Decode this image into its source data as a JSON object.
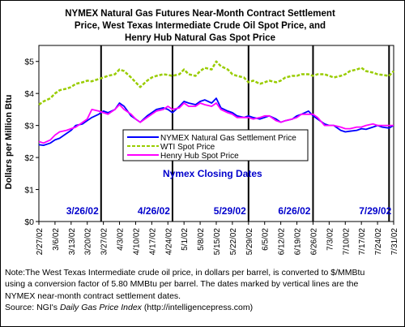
{
  "chart_data": {
    "type": "line",
    "title": "NYMEX Natural Gas Futures Near-Month Contract Settlement Price, West Texas Intermediate Crude Oil Spot Price, and Henry Hub Natural Gas Spot Price",
    "title_lines": [
      "NYMEX Natural Gas Futures Near-Month Contract Settlement",
      "Price, West Texas Intermediate Crude Oil Spot Price, and",
      "Henry Hub Natural Gas Spot Price"
    ],
    "ylabel": "Dollars per Million Btu",
    "xlabel": "",
    "ylim": [
      0,
      5.5
    ],
    "yticks": [
      "$0",
      "$1",
      "$2",
      "$3",
      "$4",
      "$5"
    ],
    "xlim": [
      "2002-02-27",
      "2002-07-31"
    ],
    "xticks": [
      "2/27/02",
      "3/6/02",
      "3/13/02",
      "3/20/02",
      "3/27/02",
      "4/3/02",
      "4/10/02",
      "4/17/02",
      "4/24/02",
      "5/1/02",
      "5/8/02",
      "5/15/02",
      "5/22/02",
      "5/29/02",
      "6/5/02",
      "6/12/02",
      "6/19/02",
      "6/26/02",
      "7/3/02",
      "7/10/02",
      "7/17/02",
      "7/24/02",
      "7/31/02"
    ],
    "grid": false,
    "legend": "center",
    "closing_dates_label": "Nymex Closing Dates",
    "closing_dates": [
      "3/26/02",
      "4/26/02",
      "5/29/02",
      "6/26/02",
      "7/29/02"
    ],
    "series": [
      {
        "name": "NYMEX Natural Gas Settlement Price",
        "color": "#0000ff",
        "style": "solid",
        "x": [
          "2002-02-27",
          "2002-03-01",
          "2002-03-04",
          "2002-03-06",
          "2002-03-08",
          "2002-03-11",
          "2002-03-13",
          "2002-03-15",
          "2002-03-18",
          "2002-03-20",
          "2002-03-22",
          "2002-03-25",
          "2002-03-27",
          "2002-03-29",
          "2002-04-01",
          "2002-04-03",
          "2002-04-05",
          "2002-04-08",
          "2002-04-10",
          "2002-04-12",
          "2002-04-15",
          "2002-04-17",
          "2002-04-19",
          "2002-04-22",
          "2002-04-24",
          "2002-04-26",
          "2002-04-29",
          "2002-05-01",
          "2002-05-03",
          "2002-05-06",
          "2002-05-08",
          "2002-05-10",
          "2002-05-13",
          "2002-05-15",
          "2002-05-17",
          "2002-05-20",
          "2002-05-22",
          "2002-05-24",
          "2002-05-27",
          "2002-05-29",
          "2002-05-31",
          "2002-06-03",
          "2002-06-05",
          "2002-06-07",
          "2002-06-10",
          "2002-06-12",
          "2002-06-14",
          "2002-06-17",
          "2002-06-19",
          "2002-06-21",
          "2002-06-24",
          "2002-06-26",
          "2002-06-28",
          "2002-07-01",
          "2002-07-03",
          "2002-07-05",
          "2002-07-08",
          "2002-07-10",
          "2002-07-12",
          "2002-07-15",
          "2002-07-17",
          "2002-07-19",
          "2002-07-22",
          "2002-07-24",
          "2002-07-26",
          "2002-07-29",
          "2002-07-31"
        ],
        "values": [
          2.4,
          2.38,
          2.45,
          2.55,
          2.6,
          2.75,
          2.85,
          3.0,
          3.05,
          3.15,
          3.25,
          3.35,
          3.45,
          3.4,
          3.5,
          3.7,
          3.6,
          3.3,
          3.2,
          3.1,
          3.3,
          3.4,
          3.5,
          3.55,
          3.5,
          3.4,
          3.6,
          3.75,
          3.7,
          3.65,
          3.75,
          3.8,
          3.7,
          3.85,
          3.55,
          3.45,
          3.4,
          3.3,
          3.25,
          3.3,
          3.25,
          3.2,
          3.25,
          3.3,
          3.2,
          3.1,
          3.15,
          3.2,
          3.3,
          3.35,
          3.45,
          3.3,
          3.2,
          3.05,
          3.0,
          3.0,
          2.85,
          2.8,
          2.82,
          2.85,
          2.9,
          2.88,
          2.95,
          3.0,
          2.95,
          2.92,
          3.0
        ]
      },
      {
        "name": "WTI Spot Price",
        "color": "#99cc00",
        "style": "dashed",
        "x": [
          "2002-02-27",
          "2002-03-01",
          "2002-03-04",
          "2002-03-06",
          "2002-03-08",
          "2002-03-11",
          "2002-03-13",
          "2002-03-15",
          "2002-03-18",
          "2002-03-20",
          "2002-03-22",
          "2002-03-25",
          "2002-03-27",
          "2002-03-29",
          "2002-04-01",
          "2002-04-03",
          "2002-04-05",
          "2002-04-08",
          "2002-04-10",
          "2002-04-12",
          "2002-04-15",
          "2002-04-17",
          "2002-04-19",
          "2002-04-22",
          "2002-04-24",
          "2002-04-26",
          "2002-04-29",
          "2002-05-01",
          "2002-05-03",
          "2002-05-06",
          "2002-05-08",
          "2002-05-10",
          "2002-05-13",
          "2002-05-15",
          "2002-05-17",
          "2002-05-20",
          "2002-05-22",
          "2002-05-24",
          "2002-05-27",
          "2002-05-29",
          "2002-05-31",
          "2002-06-03",
          "2002-06-05",
          "2002-06-07",
          "2002-06-10",
          "2002-06-12",
          "2002-06-14",
          "2002-06-17",
          "2002-06-19",
          "2002-06-21",
          "2002-06-24",
          "2002-06-26",
          "2002-06-28",
          "2002-07-01",
          "2002-07-03",
          "2002-07-05",
          "2002-07-08",
          "2002-07-10",
          "2002-07-12",
          "2002-07-15",
          "2002-07-17",
          "2002-07-19",
          "2002-07-22",
          "2002-07-24",
          "2002-07-26",
          "2002-07-29",
          "2002-07-31"
        ],
        "values": [
          3.65,
          3.75,
          3.85,
          4.0,
          4.1,
          4.15,
          4.2,
          4.3,
          4.35,
          4.4,
          4.38,
          4.45,
          4.5,
          4.55,
          4.6,
          4.75,
          4.7,
          4.5,
          4.35,
          4.2,
          4.4,
          4.5,
          4.55,
          4.6,
          4.58,
          4.55,
          4.6,
          4.75,
          4.6,
          4.55,
          4.7,
          4.8,
          4.75,
          5.0,
          4.85,
          4.75,
          4.6,
          4.55,
          4.5,
          4.35,
          4.4,
          4.3,
          4.35,
          4.4,
          4.35,
          4.4,
          4.5,
          4.55,
          4.55,
          4.6,
          4.6,
          4.55,
          4.6,
          4.6,
          4.55,
          4.5,
          4.55,
          4.6,
          4.7,
          4.75,
          4.8,
          4.7,
          4.65,
          4.6,
          4.58,
          4.55,
          4.7
        ]
      },
      {
        "name": "Henry Hub Spot Price",
        "color": "#ff00ff",
        "style": "solid",
        "x": [
          "2002-02-27",
          "2002-03-01",
          "2002-03-04",
          "2002-03-06",
          "2002-03-08",
          "2002-03-11",
          "2002-03-13",
          "2002-03-15",
          "2002-03-18",
          "2002-03-20",
          "2002-03-22",
          "2002-03-25",
          "2002-03-27",
          "2002-03-29",
          "2002-04-01",
          "2002-04-03",
          "2002-04-05",
          "2002-04-08",
          "2002-04-10",
          "2002-04-12",
          "2002-04-15",
          "2002-04-17",
          "2002-04-19",
          "2002-04-22",
          "2002-04-24",
          "2002-04-26",
          "2002-04-29",
          "2002-05-01",
          "2002-05-03",
          "2002-05-06",
          "2002-05-08",
          "2002-05-10",
          "2002-05-13",
          "2002-05-15",
          "2002-05-17",
          "2002-05-20",
          "2002-05-22",
          "2002-05-24",
          "2002-05-27",
          "2002-05-29",
          "2002-05-31",
          "2002-06-03",
          "2002-06-05",
          "2002-06-07",
          "2002-06-10",
          "2002-06-12",
          "2002-06-14",
          "2002-06-17",
          "2002-06-19",
          "2002-06-21",
          "2002-06-24",
          "2002-06-26",
          "2002-06-28",
          "2002-07-01",
          "2002-07-03",
          "2002-07-05",
          "2002-07-08",
          "2002-07-10",
          "2002-07-12",
          "2002-07-15",
          "2002-07-17",
          "2002-07-19",
          "2002-07-22",
          "2002-07-24",
          "2002-07-26",
          "2002-07-29",
          "2002-07-31"
        ],
        "values": [
          2.5,
          2.45,
          2.55,
          2.7,
          2.8,
          2.85,
          2.9,
          2.95,
          3.1,
          3.2,
          3.5,
          3.45,
          3.4,
          3.35,
          3.5,
          3.65,
          3.5,
          3.35,
          3.2,
          3.1,
          3.25,
          3.35,
          3.45,
          3.5,
          3.6,
          3.5,
          3.55,
          3.7,
          3.6,
          3.6,
          3.7,
          3.65,
          3.6,
          3.7,
          3.5,
          3.4,
          3.35,
          3.25,
          3.25,
          3.25,
          3.2,
          3.25,
          3.3,
          3.3,
          3.15,
          3.1,
          3.15,
          3.2,
          3.25,
          3.35,
          3.35,
          3.35,
          3.25,
          3.0,
          3.0,
          3.0,
          2.95,
          2.9,
          2.9,
          2.95,
          2.95,
          3.0,
          3.05,
          3.0,
          3.0,
          3.0,
          3.0
        ]
      }
    ]
  },
  "note": {
    "line1": "Note:The West Texas Intermediate crude oil price, in dollars per barrel,  is converted to $/MMBtu",
    "line2": "using a conversion factor of 5.80 MMBtu per barrel.  The dates marked by vertical lines are the",
    "line3": "NYMEX near-month contract settlement dates.",
    "source_prefix": "Source:  NGI's ",
    "source_italic": "Daily Gas Price Index",
    "source_suffix": " (http://intelligencepress.com)"
  }
}
